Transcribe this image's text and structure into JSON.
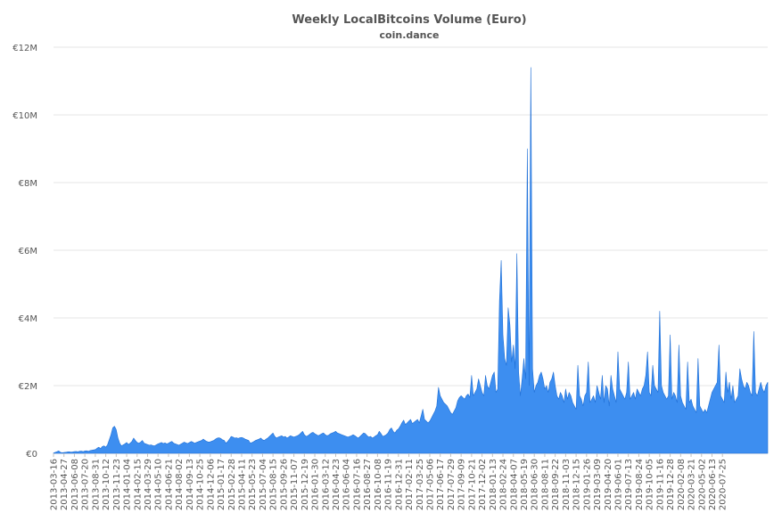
{
  "chart_data": {
    "type": "area",
    "title": "Weekly LocalBitcoins Volume (Euro)",
    "subtitle": "coin.dance",
    "xlabel": "",
    "ylabel": "",
    "ylim": [
      0,
      12000000
    ],
    "y_ticks": [
      {
        "value": 0,
        "label": "€0"
      },
      {
        "value": 2000000,
        "label": "€2M"
      },
      {
        "value": 4000000,
        "label": "€4M"
      },
      {
        "value": 6000000,
        "label": "€6M"
      },
      {
        "value": 8000000,
        "label": "€8M"
      },
      {
        "value": 10000000,
        "label": "€10M"
      },
      {
        "value": 12000000,
        "label": "€12M"
      }
    ],
    "grid": true,
    "legend": "none",
    "colors": {
      "fill": "#3d8ef0",
      "stroke": "#1f6fd6",
      "grid": "#e6e6e6",
      "text": "#555555"
    },
    "x_tick_labels": [
      "2013-03-16",
      "2013-04-27",
      "2013-06-08",
      "2013-07-20",
      "2013-08-31",
      "2013-10-12",
      "2013-11-23",
      "2014-01-04",
      "2014-02-15",
      "2014-03-29",
      "2014-05-10",
      "2014-06-21",
      "2014-08-02",
      "2014-09-13",
      "2014-10-25",
      "2014-12-06",
      "2015-01-17",
      "2015-02-28",
      "2015-04-11",
      "2015-05-23",
      "2015-07-04",
      "2015-08-15",
      "2015-09-26",
      "2015-11-07",
      "2015-12-19",
      "2016-01-30",
      "2016-03-12",
      "2016-04-23",
      "2016-06-04",
      "2016-07-16",
      "2016-08-27",
      "2016-10-08",
      "2016-11-19",
      "2016-12-31",
      "2017-02-11",
      "2017-03-25",
      "2017-05-06",
      "2017-06-17",
      "2017-07-29",
      "2017-09-09",
      "2017-10-21",
      "2017-12-02",
      "2018-01-13",
      "2018-02-24",
      "2018-04-07",
      "2018-05-19",
      "2018-06-30",
      "2018-08-11",
      "2018-09-22",
      "2018-11-03",
      "2018-12-15",
      "2019-01-26",
      "2019-03-09",
      "2019-04-20",
      "2019-06-01",
      "2019-07-13",
      "2019-08-24",
      "2019-10-05",
      "2019-11-16",
      "2019-12-28",
      "2020-02-08",
      "2020-03-21",
      "2020-05-02",
      "2020-06-13",
      "2020-07-25"
    ],
    "series": [
      {
        "x_start": "2013-03-16",
        "interval_days": 7,
        "values": [
          10000,
          30000,
          50000,
          70000,
          30000,
          20000,
          25000,
          30000,
          40000,
          45000,
          35000,
          40000,
          50000,
          55000,
          45000,
          60000,
          65000,
          50000,
          70000,
          75000,
          60000,
          80000,
          90000,
          100000,
          110000,
          150000,
          180000,
          140000,
          200000,
          220000,
          180000,
          250000,
          400000,
          550000,
          750000,
          800000,
          700000,
          450000,
          300000,
          220000,
          250000,
          280000,
          320000,
          260000,
          300000,
          350000,
          450000,
          380000,
          320000,
          300000,
          330000,
          380000,
          300000,
          280000,
          260000,
          240000,
          250000,
          230000,
          220000,
          250000,
          280000,
          300000,
          320000,
          290000,
          310000,
          280000,
          300000,
          330000,
          350000,
          300000,
          280000,
          260000,
          240000,
          270000,
          300000,
          330000,
          310000,
          290000,
          320000,
          350000,
          330000,
          300000,
          320000,
          340000,
          360000,
          380000,
          420000,
          380000,
          350000,
          330000,
          340000,
          360000,
          380000,
          420000,
          450000,
          460000,
          440000,
          400000,
          380000,
          300000,
          350000,
          420000,
          500000,
          480000,
          450000,
          460000,
          440000,
          460000,
          470000,
          450000,
          420000,
          400000,
          380000,
          300000,
          320000,
          350000,
          380000,
          400000,
          420000,
          450000,
          400000,
          380000,
          420000,
          450000,
          500000,
          550000,
          600000,
          500000,
          450000,
          480000,
          500000,
          520000,
          480000,
          500000,
          450000,
          480000,
          520000,
          500000,
          480000,
          500000,
          520000,
          550000,
          600000,
          650000,
          550000,
          500000,
          520000,
          560000,
          600000,
          620000,
          580000,
          550000,
          520000,
          550000,
          580000,
          600000,
          550000,
          520000,
          540000,
          580000,
          600000,
          620000,
          650000,
          600000,
          580000,
          560000,
          540000,
          520000,
          500000,
          480000,
          500000,
          520000,
          550000,
          520000,
          480000,
          450000,
          500000,
          550000,
          600000,
          580000,
          520000,
          480000,
          500000,
          450000,
          480000,
          520000,
          550000,
          650000,
          580000,
          500000,
          520000,
          550000,
          600000,
          700000,
          750000,
          650000,
          600000,
          680000,
          720000,
          800000,
          900000,
          980000,
          850000,
          900000,
          950000,
          1000000,
          880000,
          920000,
          960000,
          1000000,
          900000,
          1100000,
          1300000,
          1000000,
          950000,
          900000,
          950000,
          1050000,
          1150000,
          1250000,
          1400000,
          1950000,
          1700000,
          1600000,
          1500000,
          1450000,
          1400000,
          1300000,
          1200000,
          1150000,
          1250000,
          1350000,
          1550000,
          1650000,
          1700000,
          1650000,
          1600000,
          1700000,
          1750000,
          1650000,
          2300000,
          1700000,
          1800000,
          1900000,
          2200000,
          2000000,
          1800000,
          1700000,
          2300000,
          2000000,
          1900000,
          2100000,
          2300000,
          2400000,
          1800000,
          1900000,
          4500000,
          5700000,
          3500000,
          2800000,
          2600000,
          4300000,
          3800000,
          2700000,
          3200000,
          2500000,
          5900000,
          2400000,
          1700000,
          2200000,
          2800000,
          2200000,
          9000000,
          2000000,
          11400000,
          2500000,
          1800000,
          2000000,
          2100000,
          2300000,
          2400000,
          2200000,
          1900000,
          2000000,
          1800000,
          2100000,
          2200000,
          2400000,
          2000000,
          1700000,
          1600000,
          1800000,
          1700000,
          1500000,
          1900000,
          1600000,
          1800000,
          1700000,
          1500000,
          1400000,
          1300000,
          2600000,
          1700000,
          1600000,
          1400000,
          1700000,
          1800000,
          2700000,
          1500000,
          1600000,
          1700000,
          1500000,
          2000000,
          1800000,
          1600000,
          2300000,
          1500000,
          2000000,
          1900000,
          1400000,
          2300000,
          1900000,
          1700000,
          1500000,
          3000000,
          1900000,
          1800000,
          1700000,
          1600000,
          1800000,
          2700000,
          1600000,
          1700000,
          1800000,
          1600000,
          1900000,
          1800000,
          1700000,
          1900000,
          2000000,
          2300000,
          3000000,
          1800000,
          1700000,
          2600000,
          2000000,
          1900000,
          1800000,
          4200000,
          2000000,
          1800000,
          1700000,
          1600000,
          1700000,
          3500000,
          1600000,
          1800000,
          1700000,
          1500000,
          3200000,
          1700000,
          1500000,
          1400000,
          1300000,
          2700000,
          1500000,
          1600000,
          1400000,
          1300000,
          1200000,
          2800000,
          1400000,
          1300000,
          1200000,
          1300000,
          1200000,
          1400000,
          1600000,
          1800000,
          1900000,
          2000000,
          2100000,
          3200000,
          1700000,
          1600000,
          1500000,
          2400000,
          1800000,
          2100000,
          1600000,
          2000000,
          1500000,
          1600000,
          1700000,
          2500000,
          2200000,
          2000000,
          1900000,
          2100000,
          2000000,
          1800000,
          1700000,
          3600000,
          1800000,
          1700000,
          1900000,
          2100000,
          1900000,
          1800000,
          2000000,
          2100000
        ]
      }
    ]
  }
}
